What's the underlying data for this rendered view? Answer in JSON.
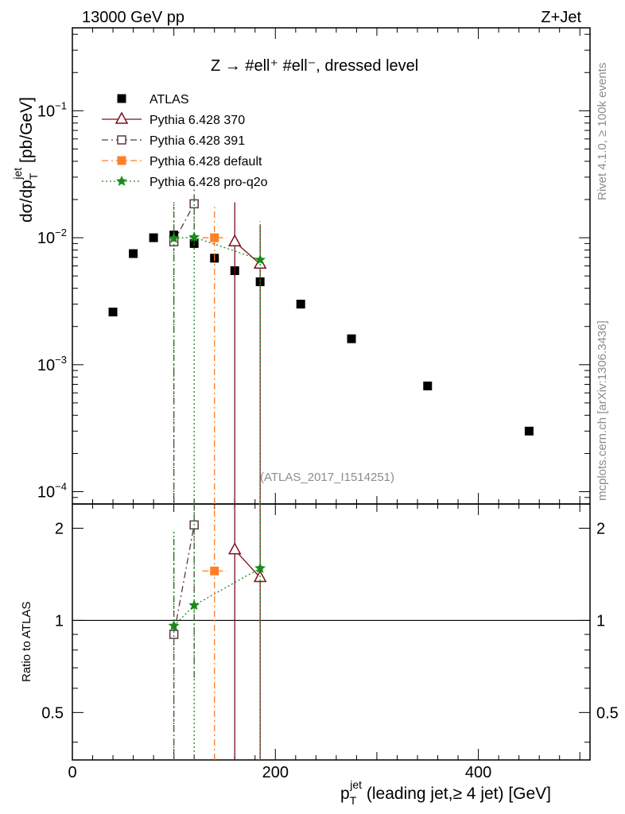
{
  "chart_data": {
    "type": "scatter",
    "header_left": "13000 GeV pp",
    "header_right": "Z+Jet",
    "title": "Z → #ell⁺ #ell⁻, dressed level",
    "ylabel_main": "dσ/dp",
    "ylabel_main_sup": "jet",
    "ylabel_main_sub": "T",
    "ylabel_main_unit": " [pb/GeV]",
    "ylabel_ratio": "Ratio to ATLAS",
    "xlabel_p": "p",
    "xlabel_sup": "jet",
    "xlabel_sub": "T",
    "xlabel_rest": " (leading jet,≥ 4 jet) [GeV]",
    "analysis_id": "(ATLAS_2017_I1514251)",
    "side_text_1": "Rivet 4.1.0, ≥ 100k events",
    "side_text_2": "mcplots.cern.ch [arXiv:1306.3436]",
    "xlim": [
      0,
      510
    ],
    "ylim_main": [
      8e-05,
      0.45
    ],
    "ylim_ratio": [
      0.35,
      2.4
    ],
    "x_ticks": [
      0,
      200,
      400
    ],
    "x_tick_labels": [
      "0",
      "200",
      "400"
    ],
    "y_ticks_main": [
      0.0001,
      0.001,
      0.01,
      0.1
    ],
    "y_tick_bases": [
      "10",
      "10",
      "10",
      "10"
    ],
    "y_tick_exps": [
      "−4",
      "−3",
      "−2",
      "−1"
    ],
    "y_ticks_ratio": [
      0.5,
      1,
      2
    ],
    "y_tick_labels_ratio": [
      "0.5",
      "1",
      "2"
    ],
    "series": [
      {
        "name": "ATLAS",
        "color": "#000000",
        "marker": "square-filled",
        "line": "none",
        "x": [
          40,
          60,
          80,
          100,
          120,
          140,
          160,
          185,
          225,
          275,
          350,
          450
        ],
        "y": [
          0.0026,
          0.0075,
          0.01,
          0.0105,
          0.009,
          0.0069,
          0.0055,
          0.0045,
          0.003,
          0.0016,
          0.00068,
          0.0003
        ]
      },
      {
        "name": "Pythia 6.428 370",
        "color": "#7a1020",
        "marker": "triangle-open",
        "line": "solid",
        "x": [
          160,
          185
        ],
        "y": [
          0.0093,
          0.0062
        ],
        "y_err_low": [
          8e-05,
          8e-05
        ],
        "y_err_high": [
          0.019,
          0.0125
        ],
        "ratio": [
          1.7,
          1.38
        ],
        "ratio_err_low": [
          0.35,
          0.35
        ],
        "ratio_err_high": [
          2.4,
          2.4
        ]
      },
      {
        "name": "Pythia 6.428 391",
        "color": "#5a3a44",
        "marker": "square-open",
        "line": "dashdot",
        "x": [
          100,
          120
        ],
        "y": [
          0.0093,
          0.0185
        ],
        "y_err_low": [
          8e-05,
          0.009
        ],
        "y_err_high": [
          0.019,
          0.027
        ],
        "ratio": [
          0.9,
          2.05
        ],
        "ratio_err_low": [
          0.35,
          0.65
        ],
        "ratio_err_high": [
          1.85,
          2.4
        ]
      },
      {
        "name": "Pythia 6.428 default",
        "color": "#ff7f27",
        "marker": "square-filled",
        "line": "dashdot",
        "x": [
          140
        ],
        "x_err": [
          12
        ],
        "y": [
          0.01
        ],
        "y_err_low": [
          8e-05
        ],
        "y_err_high": [
          0.0175
        ],
        "ratio": [
          1.45
        ],
        "ratio_err_low": [
          0.35
        ],
        "ratio_err_high": [
          2.4
        ]
      },
      {
        "name": "Pythia 6.428 pro-q2o",
        "color": "#1a8a1a",
        "marker": "star",
        "line": "dotted",
        "x": [
          100,
          120,
          185
        ],
        "y": [
          0.0099,
          0.0101,
          0.0067
        ],
        "y_err_low": [
          8e-05,
          8e-05,
          8e-05
        ],
        "y_err_high": [
          0.019,
          0.021,
          0.0135
        ],
        "ratio": [
          0.96,
          1.12,
          1.48
        ],
        "ratio_err_low": [
          0.35,
          0.35,
          0.35
        ],
        "ratio_err_high": [
          1.95,
          2.4,
          2.4
        ]
      }
    ]
  }
}
